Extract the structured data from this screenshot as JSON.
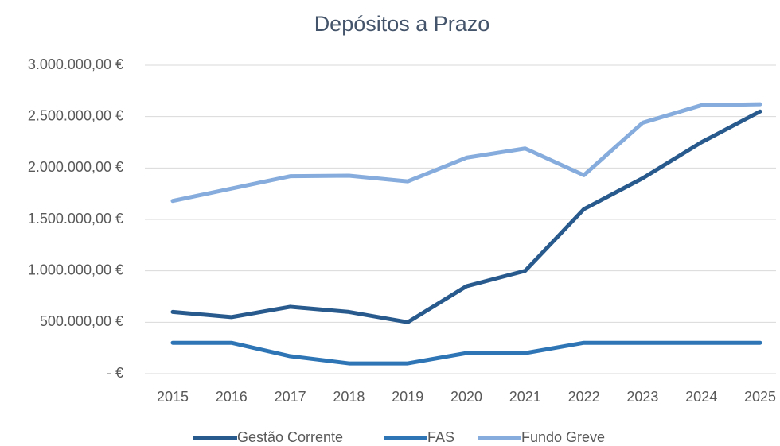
{
  "chart_data": {
    "type": "line",
    "title": "Depósitos a Prazo",
    "categories": [
      "2015",
      "2016",
      "2017",
      "2018",
      "2019",
      "2020",
      "2021",
      "2022",
      "2023",
      "2024",
      "2025"
    ],
    "series": [
      {
        "name": "Gestão Corrente",
        "color": "#285a8e",
        "values": [
          600000,
          550000,
          650000,
          600000,
          500000,
          850000,
          1000000,
          1600000,
          1900000,
          2250000,
          2550000
        ]
      },
      {
        "name": "FAS",
        "color": "#2e75b6",
        "values": [
          300000,
          300000,
          170000,
          100000,
          100000,
          200000,
          200000,
          300000,
          300000,
          300000,
          300000
        ]
      },
      {
        "name": "Fundo Greve",
        "color": "#85acdc",
        "values": [
          1680000,
          1800000,
          1920000,
          1925000,
          1870000,
          2100000,
          2190000,
          1930000,
          2440000,
          2610000,
          2620000
        ]
      }
    ],
    "ylim": [
      0,
      3000000
    ],
    "yticks": [
      {
        "value": 0,
        "label": "-   €"
      },
      {
        "value": 500000,
        "label": "500.000,00 €"
      },
      {
        "value": 1000000,
        "label": "1.000.000,00 €"
      },
      {
        "value": 1500000,
        "label": "1.500.000,00 €"
      },
      {
        "value": 2000000,
        "label": "2.000.000,00 €"
      },
      {
        "value": 2500000,
        "label": "2.500.000,00 €"
      },
      {
        "value": 3000000,
        "label": "3.000.000,00 €"
      }
    ],
    "grid": true,
    "legend": "bottom"
  }
}
